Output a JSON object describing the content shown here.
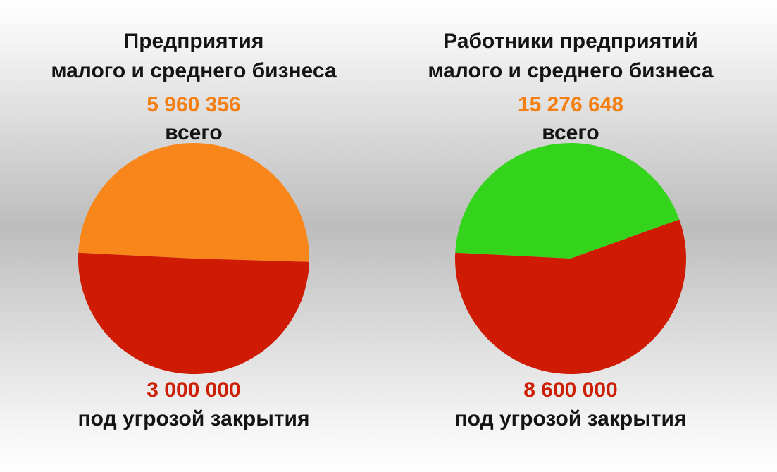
{
  "colors": {
    "total": "#f47f13",
    "threat": "#cc1f05",
    "orange_slice": "#f9861a",
    "green_slice": "#35d41c",
    "red_slice": "#cf1a04"
  },
  "chart_data": [
    {
      "type": "pie",
      "title": "Предприятия малого и среднего бизнеса",
      "title_lines": [
        "Предприятия",
        "малого и среднего бизнеса"
      ],
      "total_value": "5 960 356",
      "total_label": "всего",
      "threat_value": "3 000 000",
      "threat_label": "под угрозой закрытия",
      "slices": [
        {
          "value": 2960356,
          "color": "#f9861a"
        },
        {
          "value": 3000000,
          "color": "#cf1a04"
        }
      ]
    },
    {
      "type": "pie",
      "title": "Работники предприятий малого и среднего бизнеса",
      "title_lines": [
        "Работники предприятий",
        "малого и среднего бизнеса"
      ],
      "total_value": "15 276 648",
      "total_label": "всего",
      "threat_value": "8 600 000",
      "threat_label": "под угрозой закрытия",
      "slices": [
        {
          "value": 6676648,
          "color": "#35d41c"
        },
        {
          "value": 8600000,
          "color": "#cf1a04"
        }
      ]
    }
  ]
}
